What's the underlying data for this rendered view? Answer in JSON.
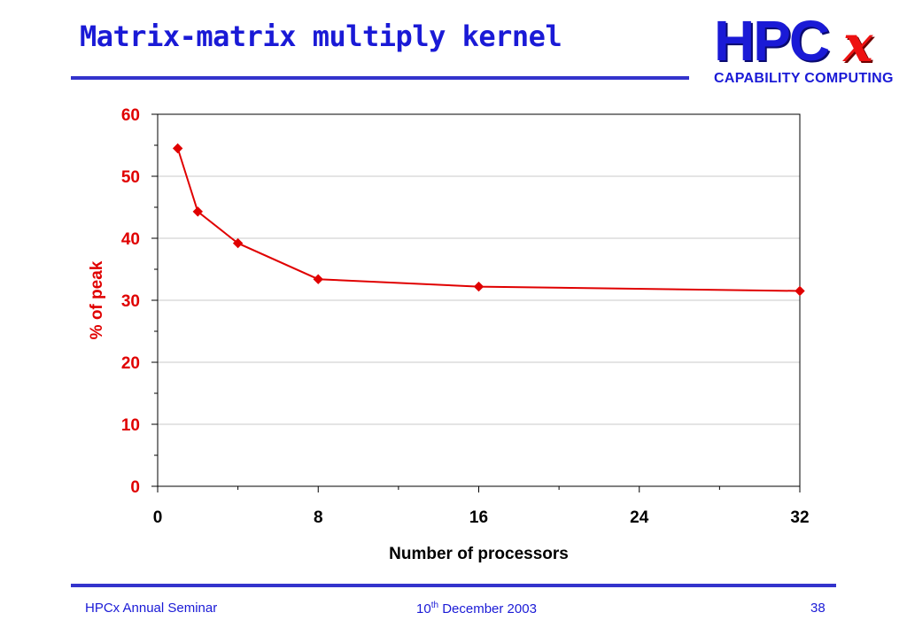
{
  "slide": {
    "title": "Matrix-matrix multiply kernel"
  },
  "logo": {
    "main": "HPC",
    "x": "x",
    "sub": "CAPABILITY COMPUTING"
  },
  "footer": {
    "left": "HPCx Annual Seminar",
    "date_day": "10",
    "date_sup": "th",
    "date_rest": " December 2003",
    "page": "38"
  },
  "colors": {
    "accent": "#1a1ad6",
    "series": "#e00000",
    "rule": "#3333cc"
  },
  "chart_data": {
    "type": "line",
    "title": "",
    "xlabel": "Number of processors",
    "ylabel": "% of peak",
    "xlim": [
      0,
      32
    ],
    "ylim": [
      0,
      60
    ],
    "xticks": [
      0,
      8,
      16,
      24,
      32
    ],
    "yticks": [
      0,
      10,
      20,
      30,
      40,
      50,
      60
    ],
    "grid": "horizontal",
    "series": [
      {
        "x": [
          1,
          2,
          4,
          8,
          16,
          32
        ],
        "y": [
          54.5,
          44.3,
          39.2,
          33.4,
          32.2,
          31.5
        ]
      }
    ]
  }
}
